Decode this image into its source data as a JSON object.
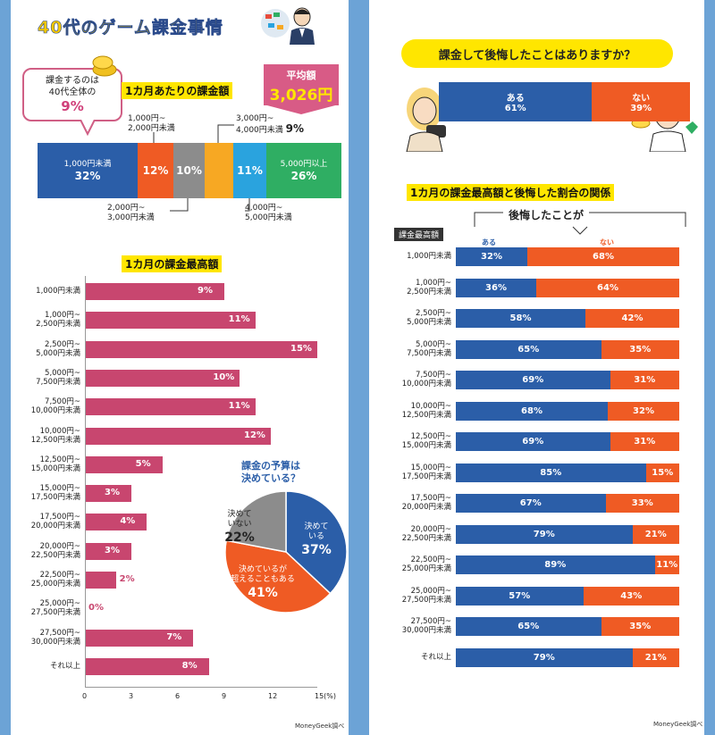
{
  "page": {
    "title": "40代のゲーム課金事情",
    "source_left": "MoneyGeek調べ",
    "source_right": "MoneyGeek調べ"
  },
  "callout": {
    "line1": "課金するのは",
    "line2": "40代全体の",
    "value": "9%"
  },
  "average": {
    "label": "平均額",
    "value": "3,026円"
  },
  "monthly_title": "1カ月あたりの課金額",
  "max_title": "1カ月の課金最高額",
  "budget": {
    "title1": "課金の予算は",
    "title2": "決めている？"
  },
  "regret": {
    "title": "課金して後悔したことはありますか？"
  },
  "relation": {
    "title": "1カ月の課金最高額と後悔した割合の関係",
    "header": "後悔したことが",
    "col_label": "課金最高額",
    "yes": "ある",
    "no": "ない"
  },
  "chart_data": [
    {
      "type": "bar",
      "title": "1カ月あたりの課金額",
      "categories": [
        "1,000円未満",
        "1,000円~2,000円未満",
        "2,000円~3,000円未満",
        "3,000円~4,000円未満",
        "4,000円~5,000円未満",
        "5,000円以上"
      ],
      "values": [
        32,
        12,
        10,
        9,
        11,
        26
      ],
      "colors": [
        "#2b5ea8",
        "#ef5b24",
        "#8c8c8c",
        "#f7a823",
        "#2aa3de",
        "#2fae63"
      ]
    },
    {
      "type": "bar",
      "title": "1カ月の課金最高額",
      "categories": [
        "1,000円未満",
        "1,000円~2,500円未満",
        "2,500円~5,000円未満",
        "5,000円~7,500円未満",
        "7,500円~10,000円未満",
        "10,000円~12,500円未満",
        "12,500円~15,000円未満",
        "15,000円~17,500円未満",
        "17,500円~20,000円未満",
        "20,000円~22,500円未満",
        "22,500円~25,000円未満",
        "25,000円~27,500円未満",
        "27,500円~30,000円未満",
        "それ以上"
      ],
      "values": [
        9,
        11,
        15,
        10,
        11,
        12,
        5,
        3,
        4,
        3,
        2,
        0,
        7,
        8
      ],
      "xlim": [
        0,
        15
      ],
      "xticks": [
        "0",
        "3",
        "6",
        "9",
        "12",
        "15(%)"
      ],
      "color": "#c8466f"
    },
    {
      "type": "pie",
      "title": "課金の予算は決めている？",
      "labels": [
        "決めている",
        "決めているが超えることもある",
        "決めていない"
      ],
      "values": [
        37,
        41,
        22
      ],
      "colors": [
        "#2b5ea8",
        "#ef5b24",
        "#8c8c8c"
      ]
    },
    {
      "type": "bar",
      "title": "課金して後悔したことはありますか？",
      "labels": [
        "ある",
        "ない"
      ],
      "values": [
        61,
        39
      ],
      "colors": [
        "#2b5ea8",
        "#ef5b24"
      ]
    },
    {
      "type": "bar",
      "title": "1カ月の課金最高額と後悔した割合の関係",
      "categories": [
        "1,000円未満",
        "1,000円~2,500円未満",
        "2,500円~5,000円未満",
        "5,000円~7,500円未満",
        "7,500円~10,000円未満",
        "10,000円~12,500円未満",
        "12,500円~15,000円未満",
        "15,000円~17,500円未満",
        "17,500円~20,000円未満",
        "20,000円~22,500円未満",
        "22,500円~25,000円未満",
        "25,000円~27,500円未満",
        "27,500円~30,000円未満",
        "それ以上"
      ],
      "series": [
        {
          "name": "ある",
          "values": [
            32,
            36,
            58,
            65,
            69,
            68,
            69,
            85,
            67,
            79,
            89,
            57,
            65,
            79
          ]
        },
        {
          "name": "ない",
          "values": [
            68,
            64,
            42,
            35,
            31,
            32,
            31,
            15,
            33,
            21,
            11,
            43,
            35,
            21
          ]
        }
      ],
      "colors": [
        "#2b5ea8",
        "#ef5b24"
      ]
    }
  ]
}
